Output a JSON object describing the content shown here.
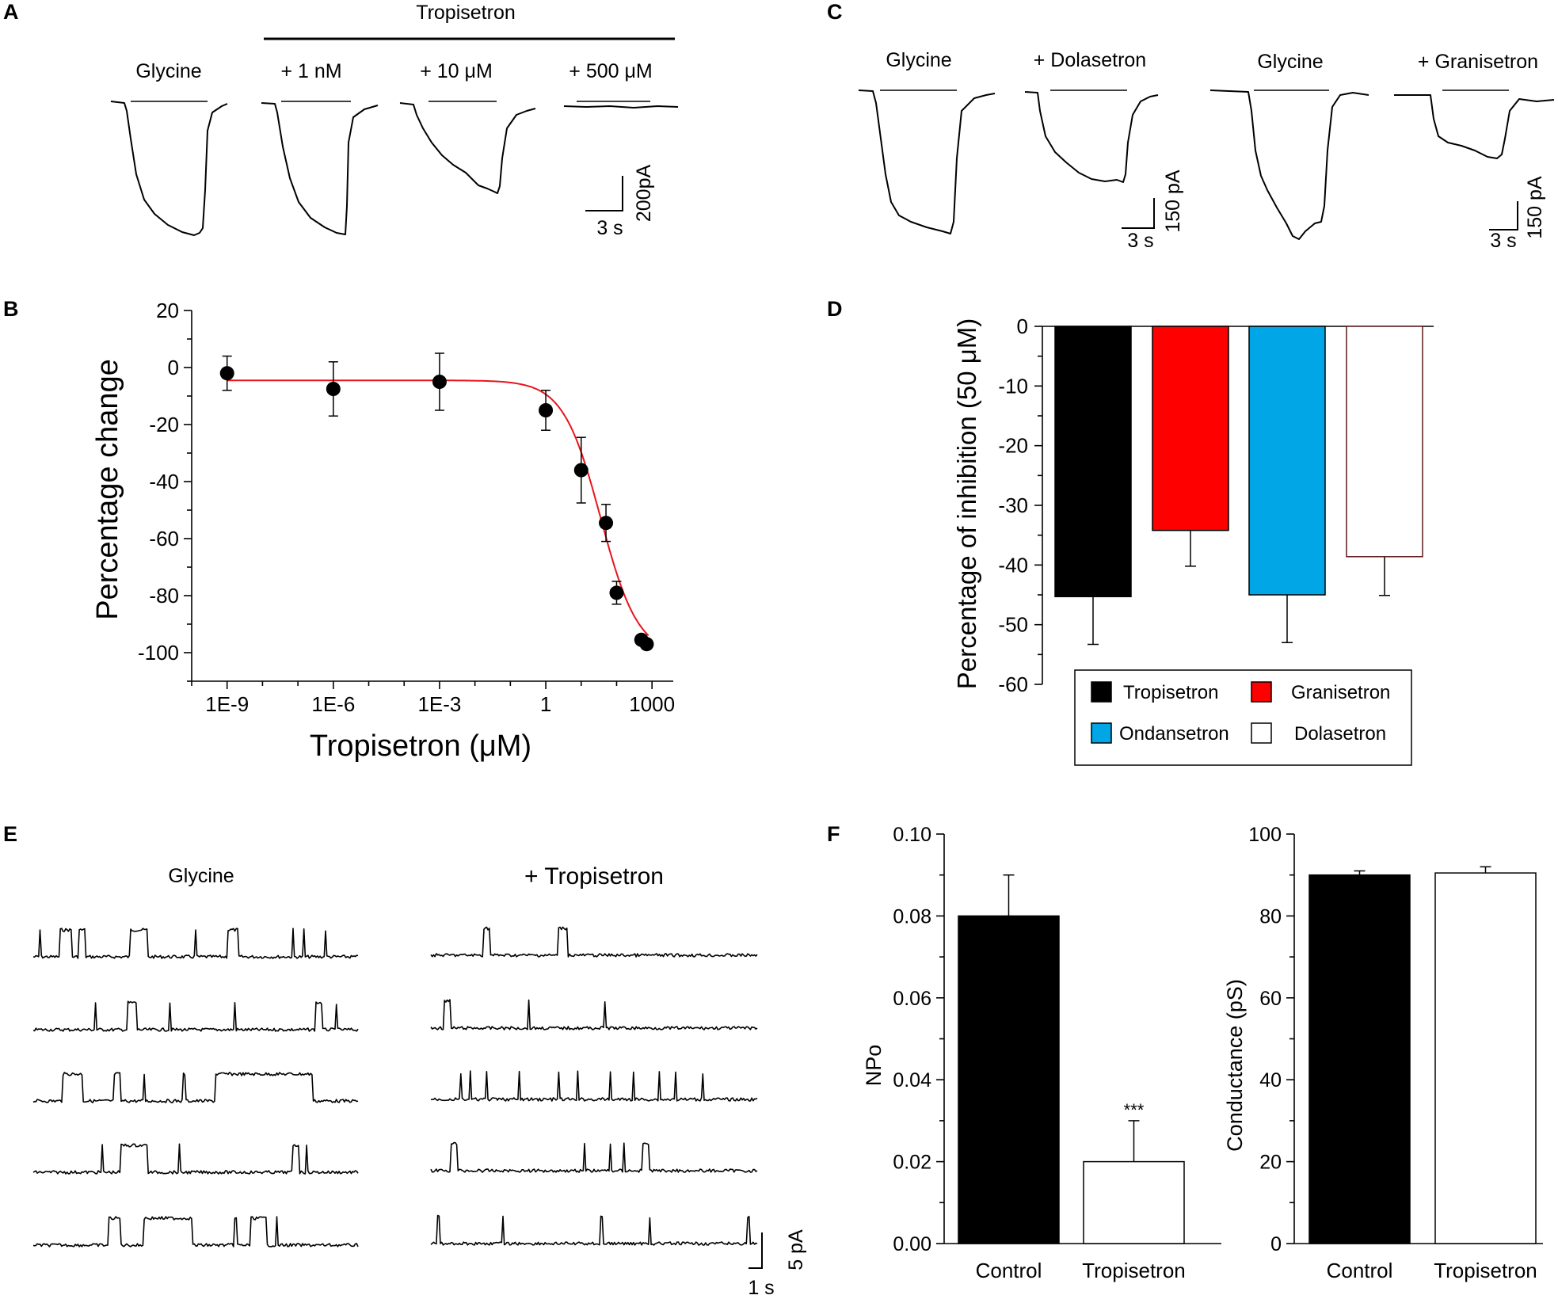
{
  "panel_letters": {
    "a": "A",
    "b": "B",
    "c": "C",
    "d": "D",
    "e": "E",
    "f": "F"
  },
  "panel_a": {
    "group_label": "Tropisetron",
    "trace_labels": [
      "Glycine",
      "+ 1 nM",
      "+ 10 μM",
      "+ 500 μM"
    ],
    "scale_x": "3 s",
    "scale_y": "200pA"
  },
  "panel_c": {
    "trace_labels": [
      "Glycine",
      "+ Dolasetron",
      "Glycine",
      "+ Granisetron"
    ],
    "scale_x_1": "3 s",
    "scale_y_1": "150 pA",
    "scale_x_2": "3 s",
    "scale_y_2": "150 pA"
  },
  "panel_e": {
    "col1_label": "Glycine",
    "col2_label": "+ Tropisetron",
    "scale_x": "1 s",
    "scale_y": "5 pA"
  },
  "chart_data": [
    {
      "id": "B",
      "type": "scatter",
      "title": "",
      "xlabel": "Tropisetron (μM)",
      "ylabel": "Percentage change",
      "xscale": "log",
      "xlim_log10": [
        -10,
        3.6
      ],
      "ylim": [
        -110,
        20
      ],
      "xtick_labels": [
        "1E-9",
        "1E-6",
        "1E-3",
        "1",
        "1000"
      ],
      "xtick_log10": [
        -9,
        -6,
        -3,
        0,
        3
      ],
      "ytick_values": [
        20,
        0,
        -20,
        -40,
        -60,
        -80,
        -100
      ],
      "ytick_labels": [
        "20",
        "0",
        "-20",
        "-40",
        "-60",
        "-80",
        "-100"
      ],
      "points": [
        {
          "log10x": -9.0,
          "y": -2,
          "err": 6
        },
        {
          "log10x": -6.0,
          "y": -7.5,
          "err": 9.5
        },
        {
          "log10x": -3.0,
          "y": -5,
          "err": 10
        },
        {
          "log10x": 0.0,
          "y": -15,
          "err": 7
        },
        {
          "log10x": 1.0,
          "y": -36,
          "err": 11.5
        },
        {
          "log10x": 1.7,
          "y": -54.5,
          "err": 6.5
        },
        {
          "log10x": 2.0,
          "y": -79,
          "err": 4
        },
        {
          "log10x": 2.7,
          "y": -95.5,
          "err": 0
        },
        {
          "log10x": 2.85,
          "y": -97,
          "err": 0
        }
      ],
      "fit": {
        "top": -4.5,
        "bottom": -101,
        "log10_ic50": 1.55,
        "hill": 0.82,
        "color": "#e8141b"
      }
    },
    {
      "id": "D",
      "type": "bar",
      "title": "",
      "xlabel": "",
      "ylabel": "Percentage of inhibition (50 μM)",
      "ylim": [
        -60,
        0
      ],
      "ytick_values": [
        0,
        -10,
        -20,
        -30,
        -40,
        -50,
        -60
      ],
      "ytick_labels": [
        "0",
        "-10",
        "-20",
        "-30",
        "-40",
        "-50",
        "-60"
      ],
      "categories": [
        "Tropisetron",
        "Granisetron",
        "Ondansetron",
        "Dolasetron"
      ],
      "values": [
        -45.3,
        -34.2,
        -45,
        -38.6
      ],
      "errors": [
        8,
        6,
        8,
        6.5
      ],
      "colors": [
        "#000000",
        "#ff0000",
        "#00a6e6",
        "#ffffff"
      ],
      "edge_colors": [
        "#000000",
        "#000000",
        "#000000",
        "#5a1a1a"
      ],
      "legend": [
        "Tropisetron",
        "Granisetron",
        "Ondansetron",
        "Dolasetron"
      ],
      "legend_position": "bottom"
    },
    {
      "id": "F1",
      "type": "bar",
      "title": "",
      "xlabel": "",
      "ylabel": "NPo",
      "ylim": [
        0,
        0.1
      ],
      "ytick_values": [
        0,
        0.02,
        0.04,
        0.06,
        0.08,
        0.1
      ],
      "ytick_labels": [
        "0.00",
        "0.02",
        "0.04",
        "0.06",
        "0.08",
        "0.10"
      ],
      "categories": [
        "Control",
        "Tropisetron"
      ],
      "values": [
        0.08,
        0.02
      ],
      "errors": [
        0.01,
        0.01
      ],
      "colors": [
        "#000000",
        "#ffffff"
      ],
      "annotations": [
        "",
        "***"
      ]
    },
    {
      "id": "F2",
      "type": "bar",
      "title": "",
      "xlabel": "",
      "ylabel": "Conductance (pS)",
      "ylim": [
        0,
        100
      ],
      "ytick_values": [
        0,
        20,
        40,
        60,
        80,
        100
      ],
      "ytick_labels": [
        "0",
        "20",
        "40",
        "60",
        "80",
        "100"
      ],
      "categories": [
        "Control",
        "Tropisetron"
      ],
      "values": [
        90,
        90.5
      ],
      "errors": [
        1,
        1.5
      ],
      "colors": [
        "#000000",
        "#ffffff"
      ]
    }
  ]
}
